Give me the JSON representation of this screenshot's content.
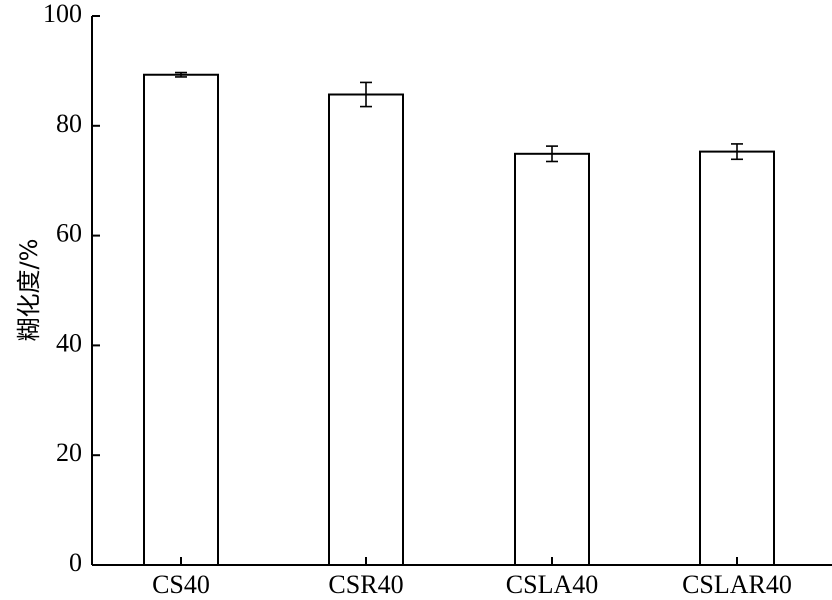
{
  "chart_data": {
    "type": "bar",
    "title": "",
    "xlabel": "",
    "ylabel": "糊化度/%",
    "categories": [
      "CS40",
      "CSR40",
      "CSLA40",
      "CSLAR40"
    ],
    "values": [
      89.3,
      85.7,
      74.9,
      75.3
    ],
    "errors": [
      0.4,
      2.2,
      1.4,
      1.4
    ],
    "ylim": [
      0,
      100
    ],
    "yticks": [
      0,
      20,
      40,
      60,
      80,
      100
    ],
    "grid": false,
    "legend": "none",
    "colors": {
      "bar_fill": "#ffffff",
      "bar_stroke": "#000000"
    }
  }
}
